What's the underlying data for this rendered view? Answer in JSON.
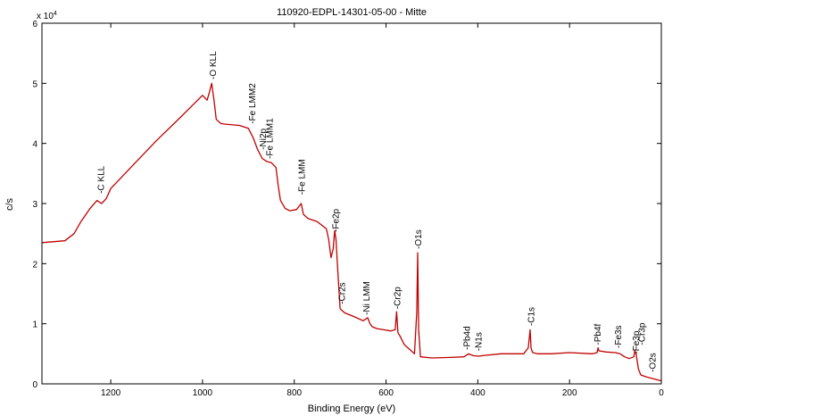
{
  "chart_data": {
    "type": "line",
    "title": "110920-EDPL-14301-05-00 - Mitte",
    "xlabel": "Binding Energy (eV)",
    "ylabel": "c/s",
    "y_exponent_label": "x 10",
    "y_exponent_power": "4",
    "xlim": [
      1350,
      0
    ],
    "ylim": [
      0,
      6
    ],
    "x_reversed": true,
    "grid": false,
    "line_color": "#c00000",
    "x_ticks": [
      {
        "value": 1200,
        "label": "1200"
      },
      {
        "value": 1000,
        "label": "1000"
      },
      {
        "value": 800,
        "label": "800"
      },
      {
        "value": 600,
        "label": "600"
      },
      {
        "value": 400,
        "label": "400"
      },
      {
        "value": 200,
        "label": "200"
      },
      {
        "value": 0,
        "label": "0"
      }
    ],
    "y_ticks": [
      {
        "value": 0,
        "label": "0"
      },
      {
        "value": 1,
        "label": "1"
      },
      {
        "value": 2,
        "label": "2"
      },
      {
        "value": 3,
        "label": "3"
      },
      {
        "value": 4,
        "label": "4"
      },
      {
        "value": 5,
        "label": "5"
      },
      {
        "value": 6,
        "label": "6"
      }
    ],
    "series": [
      {
        "name": "spectrum",
        "x": [
          1350,
          1300,
          1280,
          1265,
          1245,
          1230,
          1220,
          1210,
          1200,
          1150,
          1100,
          1050,
          1000,
          990,
          985,
          980,
          975,
          970,
          960,
          950,
          920,
          900,
          890,
          880,
          870,
          860,
          850,
          840,
          835,
          830,
          820,
          810,
          795,
          785,
          780,
          770,
          750,
          730,
          725,
          720,
          715,
          712,
          709,
          705,
          700,
          690,
          670,
          650,
          640,
          635,
          630,
          620,
          605,
          590,
          580,
          577,
          574,
          570,
          560,
          545,
          538,
          533,
          531,
          529,
          525,
          500,
          460,
          430,
          420,
          410,
          398,
          390,
          350,
          300,
          290,
          286,
          284,
          282,
          280,
          270,
          240,
          200,
          150,
          140,
          138,
          136,
          120,
          100,
          90,
          80,
          70,
          60,
          58,
          55,
          52,
          50,
          45,
          35,
          25,
          15,
          5,
          0
        ],
        "y": [
          2.35,
          2.38,
          2.5,
          2.7,
          2.92,
          3.05,
          3.0,
          3.08,
          3.25,
          3.65,
          4.05,
          4.42,
          4.8,
          4.72,
          4.85,
          5.0,
          4.72,
          4.4,
          4.33,
          4.32,
          4.3,
          4.25,
          4.1,
          3.9,
          3.75,
          3.7,
          3.68,
          3.6,
          3.3,
          3.05,
          2.92,
          2.88,
          2.9,
          3.0,
          2.82,
          2.75,
          2.7,
          2.58,
          2.4,
          2.1,
          2.25,
          2.55,
          2.4,
          1.85,
          1.25,
          1.18,
          1.12,
          1.05,
          1.1,
          1.0,
          0.95,
          0.92,
          0.9,
          0.88,
          0.9,
          1.2,
          0.85,
          0.8,
          0.65,
          0.55,
          0.5,
          1.2,
          2.18,
          0.9,
          0.45,
          0.43,
          0.44,
          0.45,
          0.5,
          0.47,
          0.46,
          0.47,
          0.5,
          0.5,
          0.6,
          0.9,
          0.6,
          0.55,
          0.52,
          0.5,
          0.5,
          0.52,
          0.5,
          0.52,
          0.6,
          0.55,
          0.53,
          0.52,
          0.5,
          0.45,
          0.42,
          0.45,
          0.55,
          0.5,
          0.35,
          0.25,
          0.15,
          0.12,
          0.1,
          0.08,
          0.06,
          0.05
        ]
      }
    ],
    "annotations": [
      {
        "text": "C KLL",
        "x": 1223,
        "y": 3.12
      },
      {
        "text": "O KLL",
        "x": 978,
        "y": 5.02
      },
      {
        "text": "Fe LMM2",
        "x": 893,
        "y": 4.28
      },
      {
        "text": "Ni2p",
        "x": 870,
        "y": 3.85
      },
      {
        "text": "Fe LMM1",
        "x": 855,
        "y": 3.7
      },
      {
        "text": "Fe LMM",
        "x": 785,
        "y": 3.1
      },
      {
        "text": "Fe2p",
        "x": 711,
        "y": 2.48
      },
      {
        "text": "Cr2s",
        "x": 697,
        "y": 1.28
      },
      {
        "text": "Ni LMM",
        "x": 644,
        "y": 1.1
      },
      {
        "text": "Cr2p",
        "x": 577,
        "y": 1.2
      },
      {
        "text": "O1s",
        "x": 531,
        "y": 2.2
      },
      {
        "text": "Pb4d",
        "x": 425,
        "y": 0.52
      },
      {
        "text": "N1s",
        "x": 400,
        "y": 0.5
      },
      {
        "text": "C1s",
        "x": 285,
        "y": 0.92
      },
      {
        "text": "Pb4f",
        "x": 140,
        "y": 0.6
      },
      {
        "text": "Fe3s",
        "x": 95,
        "y": 0.55
      },
      {
        "text": "Fe3p",
        "x": 56,
        "y": 0.45
      },
      {
        "text": "Cr3p",
        "x": 44,
        "y": 0.6
      },
      {
        "text": "O2s",
        "x": 20,
        "y": 0.15
      }
    ]
  }
}
